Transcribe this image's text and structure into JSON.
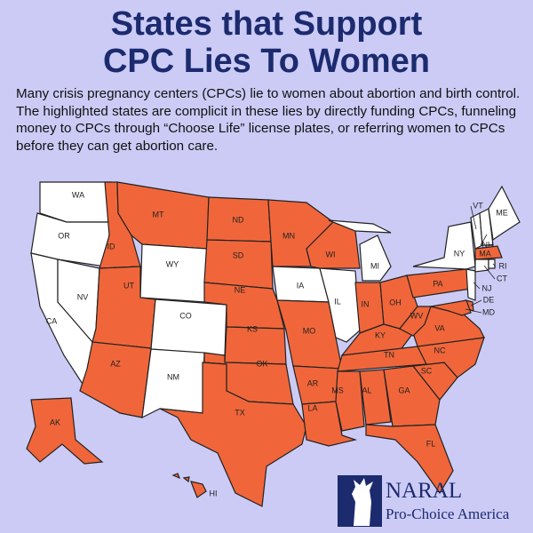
{
  "header": {
    "title_line1": "States that Support",
    "title_line2": "CPC Lies To Women"
  },
  "description": "Many crisis pregnancy centers (CPCs) lie to women about abortion and birth control. The highlighted states are complicit in these lies by directly funding CPCs, funneling money to CPCs through “Choose Life” license plates, or referring women to CPCs before they can get abortion care.",
  "map": {
    "highlight_color": "#f0663a",
    "plain_color": "#ffffff",
    "states": [
      {
        "label": "WA",
        "highlighted": false
      },
      {
        "label": "OR",
        "highlighted": false
      },
      {
        "label": "CA",
        "highlighted": false
      },
      {
        "label": "NV",
        "highlighted": false
      },
      {
        "label": "ID",
        "highlighted": true
      },
      {
        "label": "MT",
        "highlighted": true
      },
      {
        "label": "WY",
        "highlighted": false
      },
      {
        "label": "UT",
        "highlighted": true
      },
      {
        "label": "CO",
        "highlighted": false
      },
      {
        "label": "AZ",
        "highlighted": true
      },
      {
        "label": "NM",
        "highlighted": false
      },
      {
        "label": "ND",
        "highlighted": true
      },
      {
        "label": "SD",
        "highlighted": true
      },
      {
        "label": "NE",
        "highlighted": true
      },
      {
        "label": "KS",
        "highlighted": true
      },
      {
        "label": "OK",
        "highlighted": true
      },
      {
        "label": "TX",
        "highlighted": true
      },
      {
        "label": "MN",
        "highlighted": true
      },
      {
        "label": "IA",
        "highlighted": false
      },
      {
        "label": "MO",
        "highlighted": true
      },
      {
        "label": "AR",
        "highlighted": true
      },
      {
        "label": "LA",
        "highlighted": true
      },
      {
        "label": "WI",
        "highlighted": true
      },
      {
        "label": "IL",
        "highlighted": false
      },
      {
        "label": "MI",
        "highlighted": false
      },
      {
        "label": "IN",
        "highlighted": true
      },
      {
        "label": "OH",
        "highlighted": true
      },
      {
        "label": "KY",
        "highlighted": true
      },
      {
        "label": "TN",
        "highlighted": true
      },
      {
        "label": "MS",
        "highlighted": true
      },
      {
        "label": "AL",
        "highlighted": true
      },
      {
        "label": "GA",
        "highlighted": true
      },
      {
        "label": "FL",
        "highlighted": true
      },
      {
        "label": "SC",
        "highlighted": true
      },
      {
        "label": "NC",
        "highlighted": true
      },
      {
        "label": "VA",
        "highlighted": true
      },
      {
        "label": "WV",
        "highlighted": true
      },
      {
        "label": "PA",
        "highlighted": true
      },
      {
        "label": "NY",
        "highlighted": false
      },
      {
        "label": "NJ",
        "highlighted": false
      },
      {
        "label": "DE",
        "highlighted": true
      },
      {
        "label": "MD",
        "highlighted": true
      },
      {
        "label": "VT",
        "highlighted": false
      },
      {
        "label": "NH",
        "highlighted": false
      },
      {
        "label": "ME",
        "highlighted": false
      },
      {
        "label": "MA",
        "highlighted": true
      },
      {
        "label": "CT",
        "highlighted": false
      },
      {
        "label": "RI",
        "highlighted": false
      },
      {
        "label": "AK",
        "highlighted": true
      },
      {
        "label": "HI",
        "highlighted": true
      }
    ]
  },
  "logo": {
    "name": "NARAL",
    "tagline": "Pro-Choice America"
  }
}
